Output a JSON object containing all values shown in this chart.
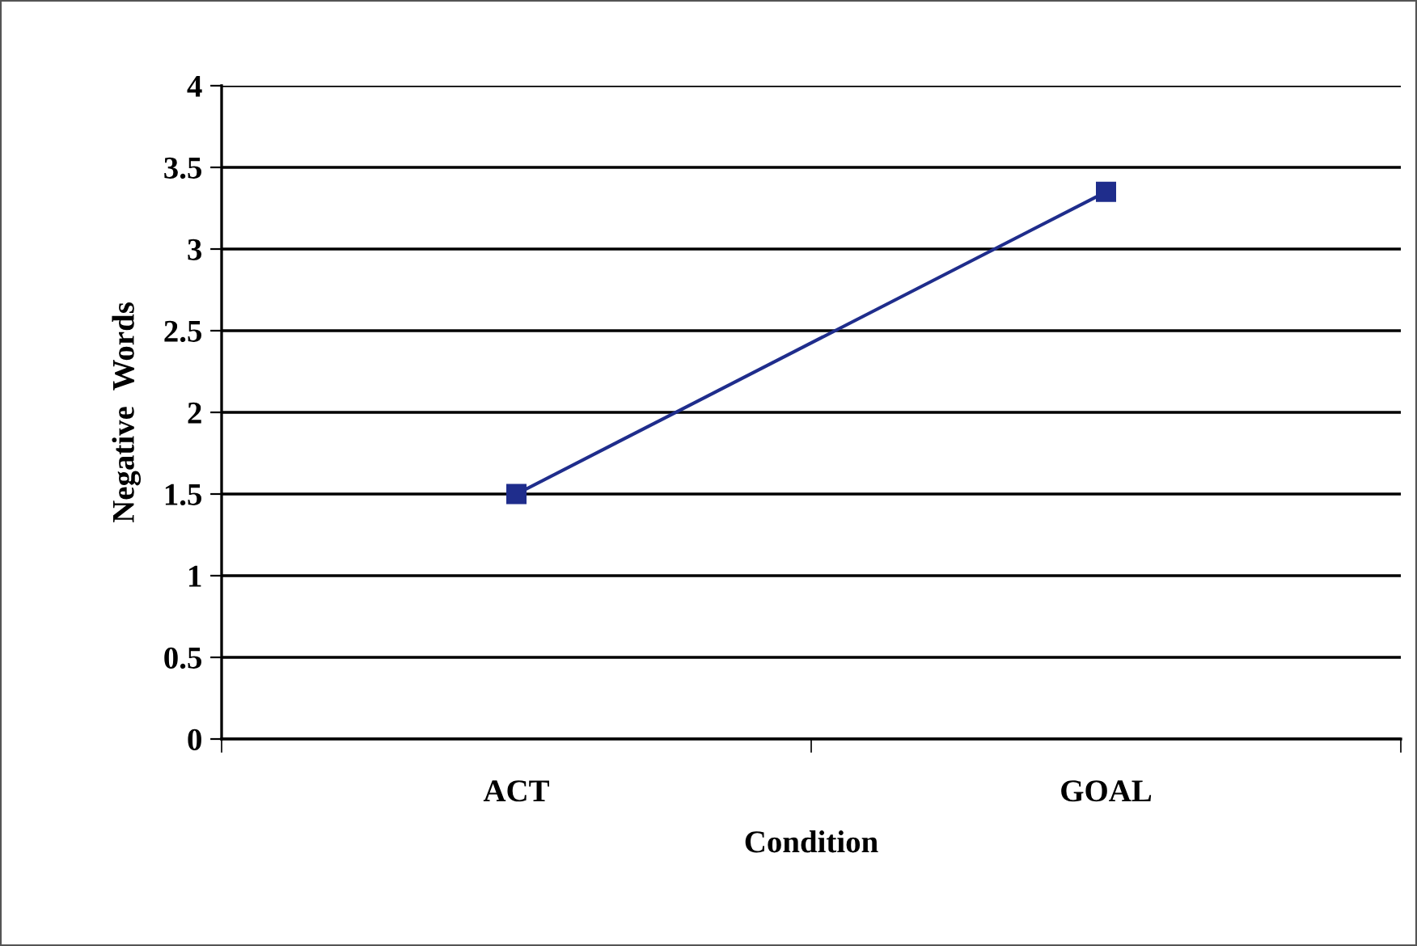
{
  "chart_data": {
    "type": "line",
    "xlabel": "Condition",
    "ylabel": "Negative  Words",
    "categories": [
      "ACT",
      "GOAL"
    ],
    "series": [
      {
        "color": "#1f2d8c",
        "values": [
          1.5,
          3.35
        ]
      }
    ],
    "ylim": [
      0,
      4
    ],
    "yticks": [
      0,
      0.5,
      1,
      1.5,
      2,
      2.5,
      3,
      3.5,
      4
    ],
    "grid": "y",
    "marker": "square",
    "line_style": "solid",
    "legend": false
  }
}
